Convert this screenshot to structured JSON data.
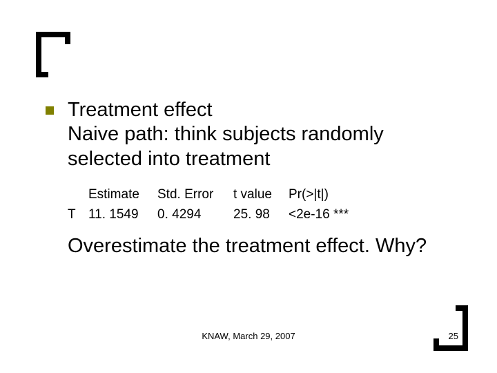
{
  "bullet": {
    "color": "#808000",
    "text_line1": "Treatment effect",
    "text_line2": "Naive path: think subjects randomly selected into treatment"
  },
  "stats": {
    "header": {
      "estimate": "Estimate",
      "stderr": "Std. Error",
      "tvalue": "t value",
      "pvalue": "Pr(>|t|)"
    },
    "row": {
      "label": "T",
      "estimate": "11. 1549",
      "stderr": "0. 4294",
      "tvalue": "25. 98",
      "pvalue": "<2e-16 ***"
    },
    "font_size": 19
  },
  "followup": "Overestimate the treatment effect. Why?",
  "footer": {
    "text": "KNAW, March 29, 2007",
    "page": "25",
    "font_size": 13
  },
  "style": {
    "body_font_size": 29,
    "background": "#ffffff",
    "text_color": "#000000",
    "bracket_color": "#000000"
  }
}
